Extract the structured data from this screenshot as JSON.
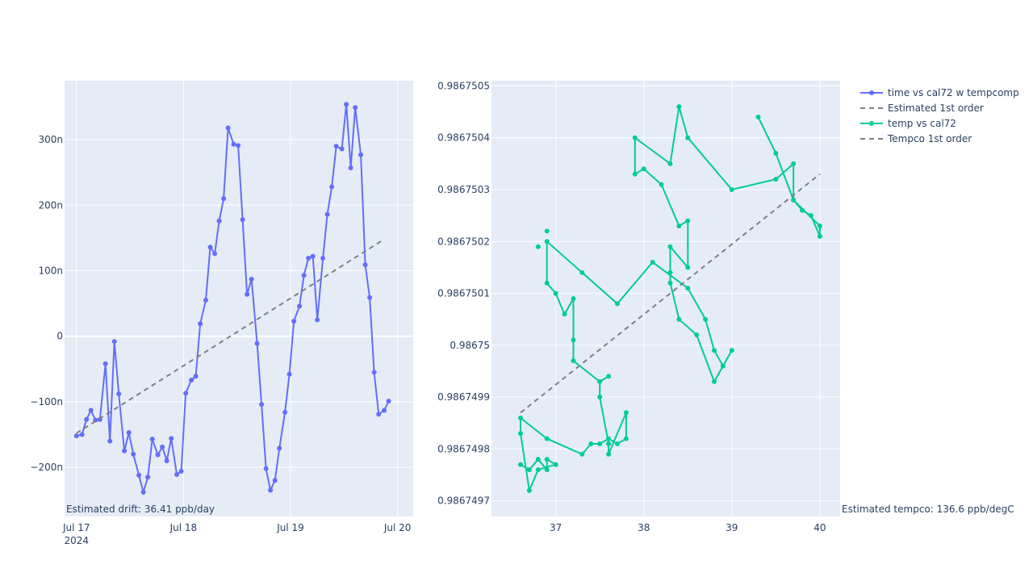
{
  "chart_data": [
    {
      "type": "line",
      "x_axis_type": "date",
      "x_ticks": [
        {
          "value": "2024-07-17",
          "label": "Jul 17",
          "sublabel": "2024"
        },
        {
          "value": "2024-07-18",
          "label": "Jul 18",
          "sublabel": ""
        },
        {
          "value": "2024-07-19",
          "label": "Jul 19",
          "sublabel": ""
        },
        {
          "value": "2024-07-20",
          "label": "Jul 20",
          "sublabel": ""
        }
      ],
      "xlim": [
        "2024-07-16 21:20",
        "2024-07-20 03:30"
      ],
      "y_ticks": [
        {
          "value": -2e-07,
          "label": "−200n"
        },
        {
          "value": -1e-07,
          "label": "−100n"
        },
        {
          "value": 0,
          "label": "0"
        },
        {
          "value": 1e-07,
          "label": "100n"
        },
        {
          "value": 2e-07,
          "label": "200n"
        },
        {
          "value": 3e-07,
          "label": "300n"
        }
      ],
      "ylim": [
        -2.75e-07,
        3.9e-07
      ],
      "grid": true,
      "annotation": "Estimated drift:  36.41 ppb/day",
      "series": [
        {
          "name": "time vs cal72 w tempcomp",
          "mode": "lines+markers",
          "color": "#636efa",
          "x": [
            "2024-07-17 00:00",
            "2024-07-17 01:15",
            "2024-07-17 02:15",
            "2024-07-17 03:15",
            "2024-07-17 04:15",
            "2024-07-17 05:15",
            "2024-07-17 06:30",
            "2024-07-17 07:30",
            "2024-07-17 08:30",
            "2024-07-17 09:30",
            "2024-07-17 10:45",
            "2024-07-17 11:45",
            "2024-07-17 12:45",
            "2024-07-17 14:00",
            "2024-07-17 15:00",
            "2024-07-17 16:00",
            "2024-07-17 17:00",
            "2024-07-17 18:15",
            "2024-07-17 19:15",
            "2024-07-17 20:15",
            "2024-07-17 21:15",
            "2024-07-17 22:30",
            "2024-07-17 23:30",
            "2024-07-18 00:30",
            "2024-07-18 01:45",
            "2024-07-18 02:45",
            "2024-07-18 03:45",
            "2024-07-18 05:00",
            "2024-07-18 06:00",
            "2024-07-18 07:00",
            "2024-07-18 08:00",
            "2024-07-18 09:00",
            "2024-07-18 10:00",
            "2024-07-18 11:15",
            "2024-07-18 12:15",
            "2024-07-18 13:15",
            "2024-07-18 14:15",
            "2024-07-18 15:15",
            "2024-07-18 16:30",
            "2024-07-18 17:30",
            "2024-07-18 18:30",
            "2024-07-18 19:30",
            "2024-07-18 20:30",
            "2024-07-18 21:30",
            "2024-07-18 22:45",
            "2024-07-18 23:45",
            "2024-07-19 00:45",
            "2024-07-19 02:00",
            "2024-07-19 03:00",
            "2024-07-19 04:00",
            "2024-07-19 05:00",
            "2024-07-19 06:00",
            "2024-07-19 07:15",
            "2024-07-19 08:15",
            "2024-07-19 09:15",
            "2024-07-19 10:15",
            "2024-07-19 11:30",
            "2024-07-19 12:30",
            "2024-07-19 13:30",
            "2024-07-19 14:30",
            "2024-07-19 15:45",
            "2024-07-19 16:45",
            "2024-07-19 17:45",
            "2024-07-19 18:45",
            "2024-07-19 19:45",
            "2024-07-19 21:00",
            "2024-07-19 22:00"
          ],
          "y": [
            -1.52e-07,
            -1.5e-07,
            -1.27e-07,
            -1.13e-07,
            -1.28e-07,
            -1.27e-07,
            -4.2e-08,
            -1.6e-07,
            -8e-09,
            -8.8e-08,
            -1.75e-07,
            -1.47e-07,
            -1.8e-07,
            -2.12e-07,
            -2.38e-07,
            -2.15e-07,
            -1.57e-07,
            -1.81e-07,
            -1.69e-07,
            -1.9e-07,
            -1.56e-07,
            -2.11e-07,
            -2.06e-07,
            -8.7e-08,
            -6.7e-08,
            -6.1e-08,
            1.9e-08,
            5.5e-08,
            1.36e-07,
            1.26e-07,
            1.76e-07,
            2.1e-07,
            3.18e-07,
            2.93e-07,
            2.91e-07,
            1.78e-07,
            6.4e-08,
            8.7e-08,
            -1.1e-08,
            -1.04e-07,
            -2.02e-07,
            -2.35e-07,
            -2.2e-07,
            -1.71e-07,
            -1.16e-07,
            -5.8e-08,
            2.3e-08,
            4.6e-08,
            9.3e-08,
            1.19e-07,
            1.22e-07,
            2.5e-08,
            1.19e-07,
            1.86e-07,
            2.28e-07,
            2.9e-07,
            2.86e-07,
            3.54e-07,
            2.57e-07,
            3.49e-07,
            2.77e-07,
            1.09e-07,
            5.9e-08,
            -5.5e-08,
            -1.19e-07,
            -1.13e-07,
            -9.9e-08
          ]
        },
        {
          "name": "Estimated 1st order",
          "mode": "lines",
          "dash": "dash",
          "color": "#808080",
          "x": [
            "2024-07-17 00:00",
            "2024-07-19 21:00"
          ],
          "y": [
            -1.48e-07,
            1.48e-07
          ]
        }
      ]
    },
    {
      "type": "scatter",
      "x_ticks": [
        {
          "value": 37,
          "label": "37"
        },
        {
          "value": 38,
          "label": "38"
        },
        {
          "value": 39,
          "label": "39"
        },
        {
          "value": 40,
          "label": "40"
        }
      ],
      "xlim": [
        36.27,
        40.23
      ],
      "y_ticks": [
        {
          "value": 0.9867497,
          "label": "0.9867497"
        },
        {
          "value": 0.9867498,
          "label": "0.9867498"
        },
        {
          "value": 0.9867499,
          "label": "0.9867499"
        },
        {
          "value": 0.98675,
          "label": "0.98675"
        },
        {
          "value": 0.9867501,
          "label": "0.9867501"
        },
        {
          "value": 0.9867502,
          "label": "0.9867502"
        },
        {
          "value": 0.9867503,
          "label": "0.9867503"
        },
        {
          "value": 0.9867504,
          "label": "0.9867504"
        },
        {
          "value": 0.9867505,
          "label": "0.9867505"
        }
      ],
      "ylim": [
        0.98674967,
        0.98675051
      ],
      "grid": true,
      "annotation": "Estimated tempco:  136.6 ppb/degC",
      "series": [
        {
          "name": "temp vs cal72",
          "mode": "lines+markers",
          "color": "#00cc96",
          "x": [
            36.6,
            36.7,
            36.8,
            36.9,
            36.9,
            37.0,
            36.8,
            36.7,
            36.6,
            36.6,
            36.9,
            37.3,
            37.4,
            37.5,
            37.6,
            37.7,
            37.8,
            37.8,
            37.6,
            37.6,
            37.5,
            37.5,
            37.6,
            37.5,
            37.2,
            37.2,
            37.2,
            37.1,
            37.0,
            36.9,
            36.9,
            37.3,
            37.7,
            38.1,
            38.5,
            38.7,
            38.8,
            38.9,
            39.0,
            38.8,
            38.6,
            38.4,
            38.3,
            38.3,
            38.3,
            38.5,
            38.5,
            38.4,
            38.2,
            38.0,
            37.9,
            37.9,
            38.3,
            38.4,
            38.5,
            39.0,
            39.5,
            39.7,
            39.7,
            39.8,
            39.9,
            40.0,
            40.0,
            39.7,
            39.5,
            39.3
          ],
          "y": [
            0.98674977,
            0.98674976,
            0.98674978,
            0.98674976,
            0.98674978,
            0.98674977,
            0.98674976,
            0.98674972,
            0.98674983,
            0.98674986,
            0.98674982,
            0.98674979,
            0.98674981,
            0.98674981,
            0.98674982,
            0.98674981,
            0.98674982,
            0.98674987,
            0.98674979,
            0.98674981,
            0.9867499,
            0.98674993,
            0.98674994,
            0.98674993,
            0.98674997,
            0.98675001,
            0.98675009,
            0.98675006,
            0.9867501,
            0.98675012,
            0.9867502,
            0.98675014,
            0.98675008,
            0.98675016,
            0.98675011,
            0.98675005,
            0.98674999,
            0.98674996,
            0.98674999,
            0.98674993,
            0.98675002,
            0.98675005,
            0.98675012,
            0.98675014,
            0.98675019,
            0.98675015,
            0.98675024,
            0.98675023,
            0.98675031,
            0.98675034,
            0.98675033,
            0.9867504,
            0.98675035,
            0.98675046,
            0.9867504,
            0.9867503,
            0.98675032,
            0.98675035,
            0.98675028,
            0.98675026,
            0.98675025,
            0.98675021,
            0.98675023,
            0.98675028,
            0.98675037,
            0.98675044
          ],
          "extra_points": [
            [
              36.9,
              0.98675022
            ],
            [
              36.8,
              0.98675019
            ]
          ]
        },
        {
          "name": "Tempco 1st order",
          "mode": "lines",
          "dash": "dash",
          "color": "#808080",
          "x": [
            36.6,
            40.0
          ],
          "y": [
            0.98674987,
            0.98675033
          ]
        }
      ]
    }
  ]
}
